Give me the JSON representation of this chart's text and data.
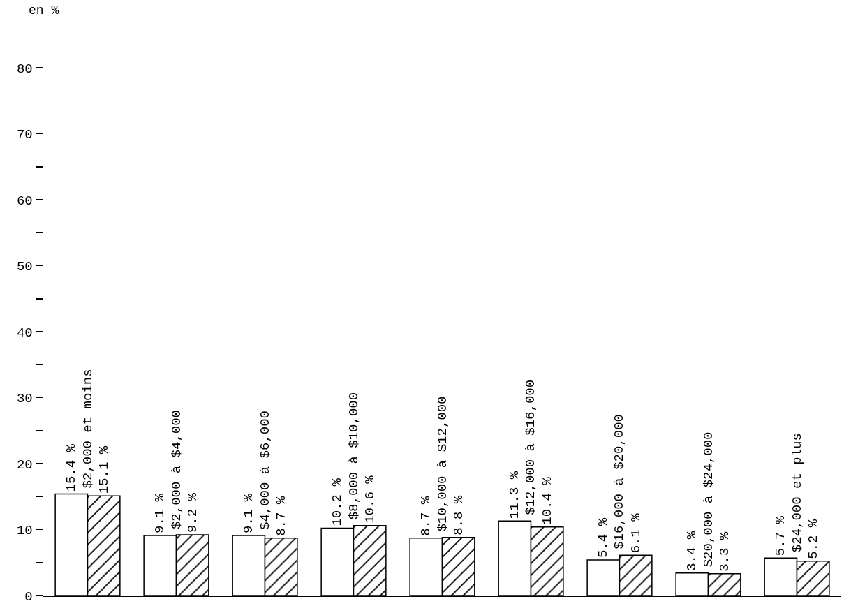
{
  "chart_data": {
    "type": "bar",
    "ylabel": "en %",
    "categories": [
      "$2,000 et moins",
      "$2,000 à $4,000",
      "$4,000 à $6,000",
      "$8,000 à $10,000",
      "$10,000 à $12,000",
      "$12,000 à $16,000",
      "$16,000 à $20,000",
      "$20,000 à $24,000",
      "$24,000 et plus"
    ],
    "series": [
      {
        "color": "#ffffff",
        "values": [
          15.4,
          9.1,
          9.1,
          10.2,
          8.7,
          11.3,
          5.4,
          3.4,
          5.7
        ],
        "value_labels": [
          "15.4 %",
          "9.1 %",
          "9.1 %",
          "10.2 %",
          "8.7 %",
          "11.3 %",
          "5.4 %",
          "3.4 %",
          "5.7 %"
        ]
      },
      {
        "color": "#000000",
        "values": [
          15.1,
          9.2,
          8.7,
          10.6,
          8.8,
          10.4,
          6.1,
          3.3,
          5.2
        ],
        "value_labels": [
          "15.1 %",
          "9.2 %",
          "8.7 %",
          "10.6 %",
          "8.8 %",
          "10.4 %",
          "6.1 %",
          "3.3 %",
          "5.2 %"
        ]
      }
    ],
    "ylim": [
      0,
      80
    ],
    "yticks": [
      0,
      {
        "value": 5,
        "label": null
      },
      10,
      {
        "value": 15,
        "label": null
      },
      20,
      {
        "value": 25,
        "label": null
      },
      30,
      {
        "value": 35,
        "label": null
      },
      40,
      {
        "value": 45,
        "label": null
      },
      50,
      {
        "value": 55,
        "label": null
      },
      60,
      {
        "value": 65,
        "label": null
      },
      70,
      {
        "value": 75,
        "label": null
      },
      80
    ],
    "grid": false,
    "tick_labels": "y"
  }
}
